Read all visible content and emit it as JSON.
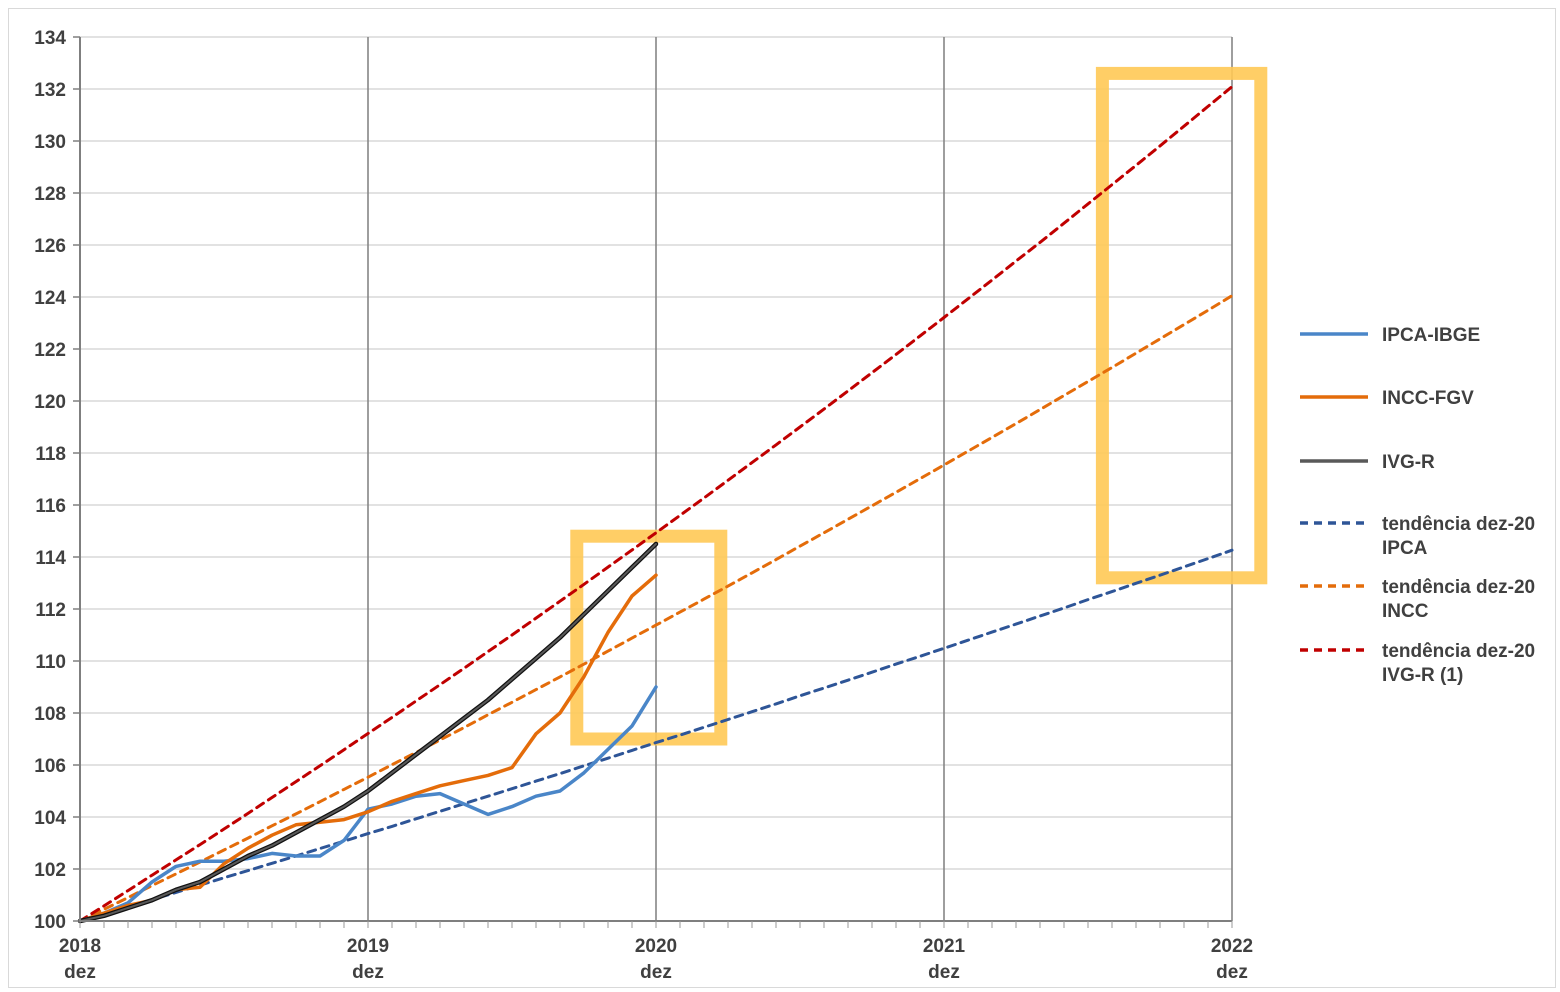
{
  "chart_data": {
    "type": "line",
    "title": "",
    "xlabel": "",
    "ylabel": "",
    "ylim": [
      100,
      134
    ],
    "ytick_step": 2,
    "x_range_months": [
      0,
      48
    ],
    "x_ticks": [
      {
        "month": 0,
        "year": "2018",
        "sub": "dez"
      },
      {
        "month": 12,
        "year": "2019",
        "sub": "dez"
      },
      {
        "month": 24,
        "year": "2020",
        "sub": "dez"
      },
      {
        "month": 36,
        "year": "2021",
        "sub": "dez"
      },
      {
        "month": 48,
        "year": "2022",
        "sub": "dez"
      }
    ],
    "grid": true,
    "legend_position": "right",
    "series": [
      {
        "name": "IPCA-IBGE",
        "color": "#4a86c8",
        "dashed": false,
        "values": [
          100,
          100.3,
          100.7,
          101.5,
          102.1,
          102.3,
          102.3,
          102.4,
          102.6,
          102.5,
          102.5,
          103.1,
          104.3,
          104.5,
          104.8,
          104.9,
          104.5,
          104.1,
          104.4,
          104.8,
          105.0,
          105.7,
          106.6,
          107.5,
          109.0
        ]
      },
      {
        "name": "INCC-FGV",
        "color": "#e46c0a",
        "dashed": false,
        "values": [
          100,
          100.3,
          100.6,
          100.8,
          101.2,
          101.3,
          102.2,
          102.8,
          103.3,
          103.7,
          103.8,
          103.9,
          104.2,
          104.6,
          104.9,
          105.2,
          105.4,
          105.6,
          105.9,
          107.2,
          108.0,
          109.4,
          111.1,
          112.5,
          113.3
        ]
      },
      {
        "name": "IVG-R",
        "color": "#595959",
        "dashed": false,
        "values": [
          100,
          100.2,
          100.5,
          100.8,
          101.2,
          101.5,
          102.0,
          102.5,
          102.9,
          103.4,
          103.9,
          104.4,
          105.0,
          105.7,
          106.4,
          107.1,
          107.8,
          108.5,
          109.3,
          110.1,
          110.9,
          111.8,
          112.7,
          113.6,
          114.5
        ]
      },
      {
        "name": "tendência dez-20 IPCA",
        "color": "#2e5597",
        "dashed": true,
        "values": [
          100,
          100.27,
          100.55,
          100.82,
          101.1,
          101.38,
          101.66,
          101.94,
          102.22,
          102.5,
          102.79,
          103.07,
          103.36,
          103.64,
          103.93,
          104.22,
          104.51,
          104.8,
          105.09,
          105.38,
          105.67,
          105.97,
          106.26,
          106.56,
          106.86,
          107.15,
          107.45,
          107.75,
          108.05,
          108.35,
          108.66,
          108.96,
          109.26,
          109.57,
          109.88,
          110.18,
          110.49,
          110.8,
          111.11,
          111.42,
          111.73,
          112.04,
          112.36,
          112.67,
          112.99,
          113.3,
          113.62,
          113.94,
          114.26
        ]
      },
      {
        "name": "tendência dez-20 INCC",
        "color": "#e46c0a",
        "dashed": true,
        "values": [
          100,
          100.45,
          100.9,
          101.36,
          101.81,
          102.27,
          102.73,
          103.19,
          103.66,
          104.12,
          104.59,
          105.06,
          105.53,
          106.01,
          106.48,
          106.96,
          107.44,
          107.93,
          108.41,
          108.9,
          109.39,
          109.88,
          110.38,
          110.88,
          111.38,
          111.88,
          112.38,
          112.88,
          113.39,
          113.9,
          114.42,
          114.93,
          115.45,
          115.97,
          116.49,
          117.01,
          117.54,
          118.07,
          118.6,
          119.13,
          119.67,
          120.21,
          120.75,
          121.29,
          121.84,
          122.39,
          122.94,
          123.49,
          124.05
        ]
      },
      {
        "name": "tendência dez-20 IVG-R (1)",
        "color": "#c00000",
        "dashed": true,
        "values": [
          100,
          100.58,
          101.17,
          101.76,
          102.35,
          102.94,
          103.54,
          104.14,
          104.75,
          105.36,
          105.97,
          106.59,
          107.21,
          107.83,
          108.46,
          109.09,
          109.72,
          110.36,
          111.0,
          111.65,
          112.3,
          112.95,
          113.61,
          114.27,
          114.93,
          115.6,
          116.27,
          116.95,
          117.63,
          118.31,
          119.0,
          119.69,
          120.39,
          121.09,
          121.79,
          122.5,
          123.21,
          123.93,
          124.65,
          125.38,
          126.1,
          126.84,
          127.58,
          128.32,
          129.06,
          129.81,
          130.57,
          131.33,
          132.09
        ]
      }
    ],
    "highlight_boxes": [
      {
        "x_from": 20.7,
        "x_to": 26.7,
        "y_from": 107.0,
        "y_to": 114.8,
        "color": "#ffc955"
      },
      {
        "x_from": 42.6,
        "x_to": 49.2,
        "y_from": 113.2,
        "y_to": 132.6,
        "color": "#ffc955"
      }
    ]
  }
}
